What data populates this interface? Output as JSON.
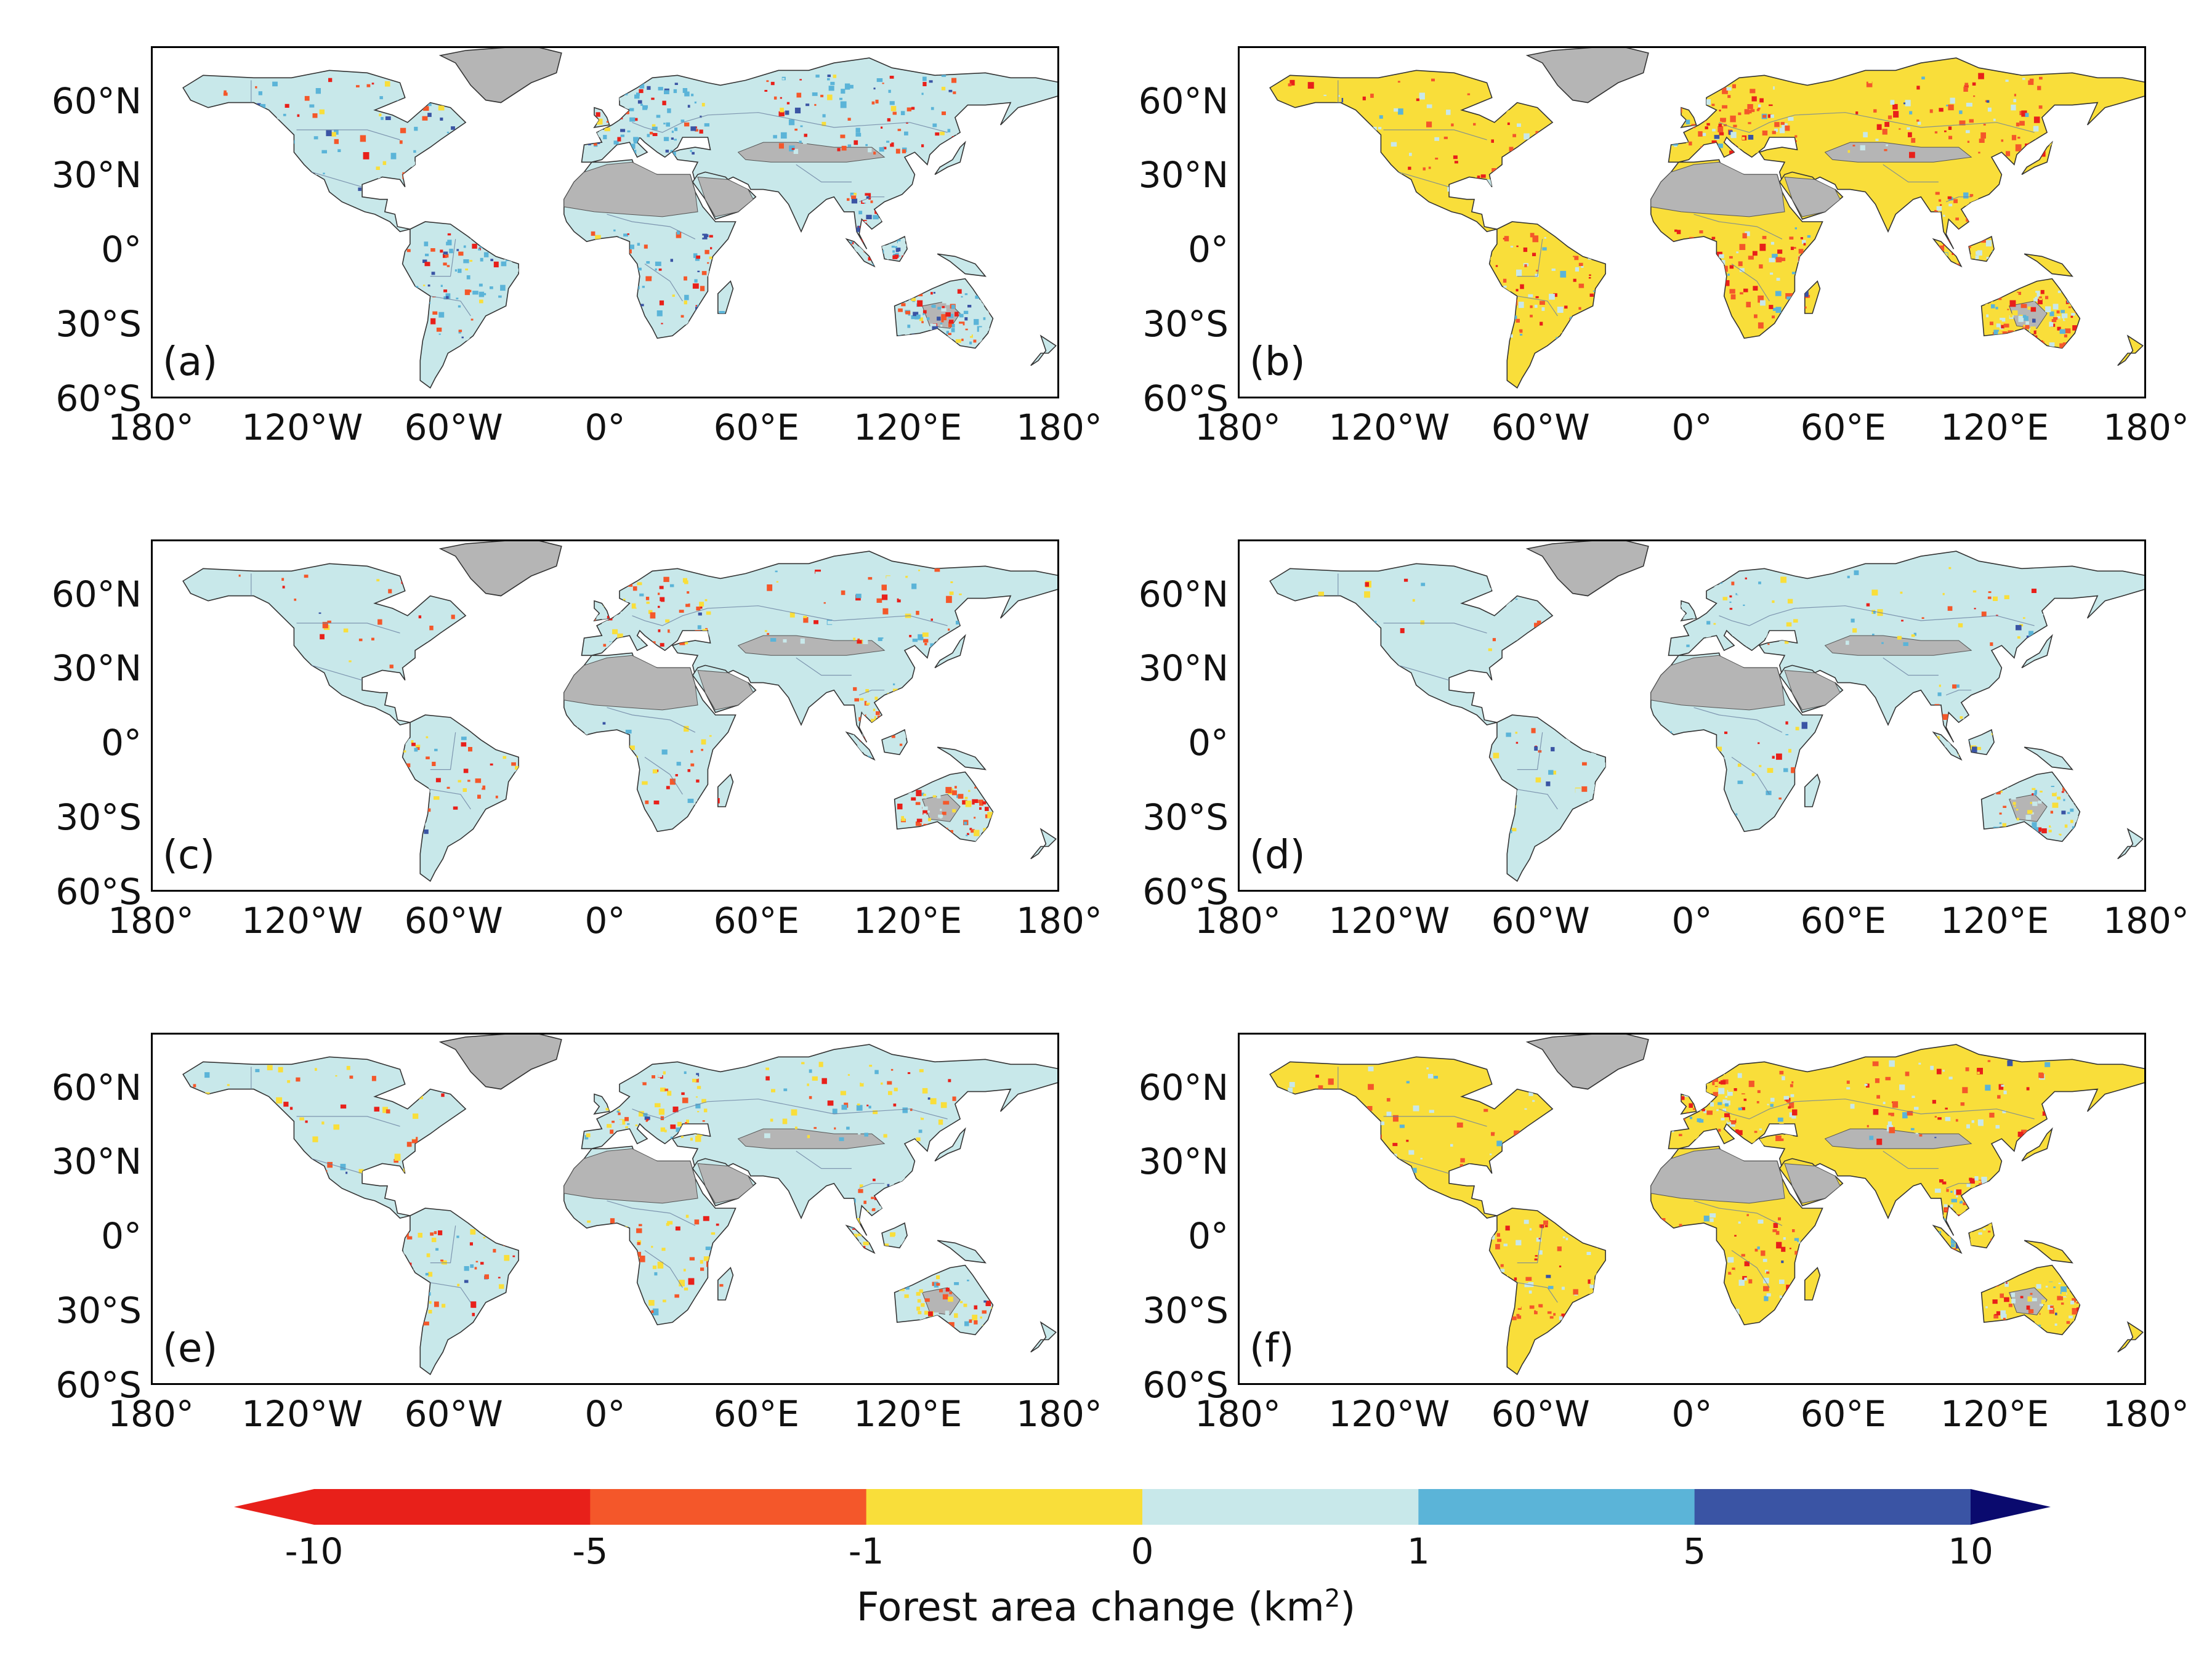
{
  "figure": {
    "panels": [
      {
        "label": "(a)",
        "scheme": "a"
      },
      {
        "label": "(b)",
        "scheme": "b"
      },
      {
        "label": "(c)",
        "scheme": "c"
      },
      {
        "label": "(d)",
        "scheme": "d"
      },
      {
        "label": "(e)",
        "scheme": "e"
      },
      {
        "label": "(f)",
        "scheme": "f"
      }
    ],
    "lat_ticks": [
      "60°N",
      "30°N",
      "0°",
      "30°S",
      "60°S"
    ],
    "lon_ticks": [
      "180°",
      "120°W",
      "60°W",
      "0°",
      "60°E",
      "120°E",
      "180°"
    ]
  },
  "colorbar": {
    "title": "Forest area change (km",
    "title_sup": "2",
    "title_end": ")",
    "ticks": [
      "-10",
      "-5",
      "-1",
      "0",
      "1",
      "5",
      "10"
    ],
    "colors": {
      "under": "#e8201a",
      "bin_-10_-5": "#e8201a",
      "bin_-5_-1": "#f4572a",
      "bin_-1_0": "#f9de3a",
      "bin_0_1": "#c8e8ea",
      "bin_1_5": "#5bb4d8",
      "bin_5_10": "#3a54a4",
      "over": "#0a0a6e",
      "no_forest": "#b5b5b5",
      "ocean": "#ffffff"
    }
  }
}
